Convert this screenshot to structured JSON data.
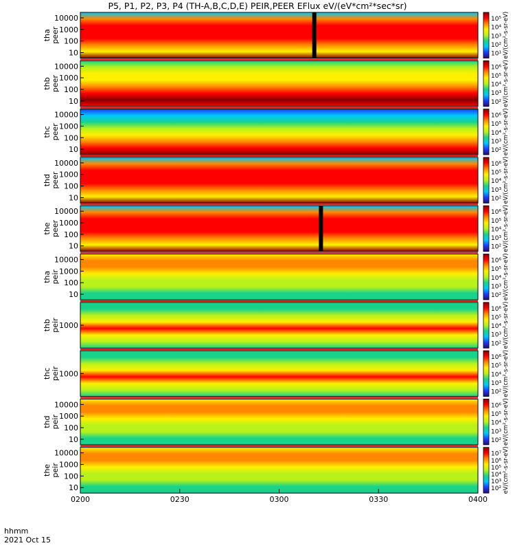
{
  "title": "P5, P1, P2, P3, P4 (TH-A,B,C,D,E) PEIR,PEER EFlux eV/(eV*cm²*sec*sr)",
  "footer": {
    "label_unit": "hhmm",
    "label_date": "2021 Oct 15"
  },
  "colors": {
    "colormap": [
      "#2a0a6e",
      "#1a3cff",
      "#00c8ff",
      "#19d38a",
      "#b8f21a",
      "#fff000",
      "#ff8800",
      "#ff0000",
      "#8a0000"
    ],
    "background": "#ffffff",
    "frame": "#000000",
    "flag_red": "#e00000",
    "flag_yellow": "#ffff66"
  },
  "chart_data": {
    "type": "heatmap",
    "x": {
      "range_hhmm": [
        "0200",
        "0400"
      ],
      "ticks": [
        "0200",
        "0230",
        "0300",
        "0330",
        "0400"
      ]
    },
    "panels": [
      {
        "id": "tha_peer",
        "label": [
          "tha",
          "peer"
        ],
        "yticks": [
          "10000",
          "1000",
          "100",
          "10"
        ],
        "zticks": [
          "10⁵",
          "10⁴",
          "10³",
          "10²",
          "10¹"
        ],
        "colorbar_title": "eV/(cm²-s-sr-eV)",
        "profile": "peer_hot",
        "gaps": [
          {
            "start": "0310",
            "end": "0311"
          }
        ]
      },
      {
        "id": "thb_peer",
        "label": [
          "thb",
          "peer"
        ],
        "yticks": [
          "10000",
          "1000",
          "100",
          "10"
        ],
        "zticks": [
          "10⁶",
          "10⁵",
          "10⁴",
          "10³",
          "10²"
        ],
        "colorbar_title": "eV/(cm²-s-sr-eV)",
        "profile": "peer_band",
        "gaps": []
      },
      {
        "id": "thc_peer",
        "label": [
          "thc",
          "peer"
        ],
        "yticks": [
          "10000",
          "1000",
          "100",
          "10"
        ],
        "zticks": [
          "10⁶",
          "10⁵",
          "10⁴",
          "10³",
          "10²"
        ],
        "colorbar_title": "eV/(cm²-s-sr-eV)",
        "profile": "peer_cool",
        "gaps": []
      },
      {
        "id": "thd_peer",
        "label": [
          "thd",
          "peer"
        ],
        "yticks": [
          "10000",
          "1000",
          "100",
          "10"
        ],
        "zticks": [
          "10⁶",
          "10⁵",
          "10⁴",
          "10³",
          "10²"
        ],
        "colorbar_title": "eV/(cm²-s-sr-eV)",
        "profile": "peer_hot",
        "gaps": []
      },
      {
        "id": "the_peer",
        "label": [
          "the",
          "peer"
        ],
        "yticks": [
          "10000",
          "1000",
          "100",
          "10"
        ],
        "zticks": [
          "10⁶",
          "10⁵",
          "10⁴",
          "10³",
          "10²"
        ],
        "colorbar_title": "eV/(cm²-s-sr-eV)",
        "profile": "peer_hot",
        "gaps": [
          {
            "start": "0312",
            "end": "0313"
          }
        ]
      },
      {
        "id": "tha_peir",
        "label": [
          "tha",
          "peir"
        ],
        "yticks": [
          "10000",
          "1000",
          "100",
          "10"
        ],
        "zticks": [
          "10⁶",
          "10⁵",
          "10⁴",
          "10³",
          "10²"
        ],
        "colorbar_title": "eV/(cm²-s-sr-eV)",
        "profile": "peir_warm",
        "gaps": []
      },
      {
        "id": "thb_peir",
        "label": [
          "thb",
          "peir"
        ],
        "yticks": [
          "1000"
        ],
        "zticks": [
          "10⁶",
          "10⁵",
          "10⁴",
          "10³",
          "10²"
        ],
        "colorbar_title": "eV/(cm²-s-sr-eV)",
        "profile": "peir_band",
        "gaps": []
      },
      {
        "id": "thc_peir",
        "label": [
          "thc",
          "peir"
        ],
        "yticks": [
          "1000"
        ],
        "zticks": [
          "10⁶",
          "10⁵",
          "10⁴",
          "10³",
          "10²"
        ],
        "colorbar_title": "eV/(cm²-s-sr-eV)",
        "profile": "peir_band",
        "gaps": []
      },
      {
        "id": "thd_peir",
        "label": [
          "thd",
          "peir"
        ],
        "yticks": [
          "10000",
          "1000",
          "100",
          "10"
        ],
        "zticks": [
          "10⁶",
          "10⁵",
          "10⁴",
          "10³",
          "10²"
        ],
        "colorbar_title": "eV/(cm²-s-sr-eV)",
        "profile": "peir_warm",
        "gaps": []
      },
      {
        "id": "the_peir",
        "label": [
          "the",
          "peir"
        ],
        "yticks": [
          "10000",
          "1000",
          "100",
          "10"
        ],
        "zticks": [
          "10⁷",
          "10⁶",
          "10⁵",
          "10⁴",
          "10³",
          "10²"
        ],
        "colorbar_title": "eV/(cm²-s-sr-eV)",
        "profile": "peir_warm",
        "gaps": []
      }
    ]
  }
}
